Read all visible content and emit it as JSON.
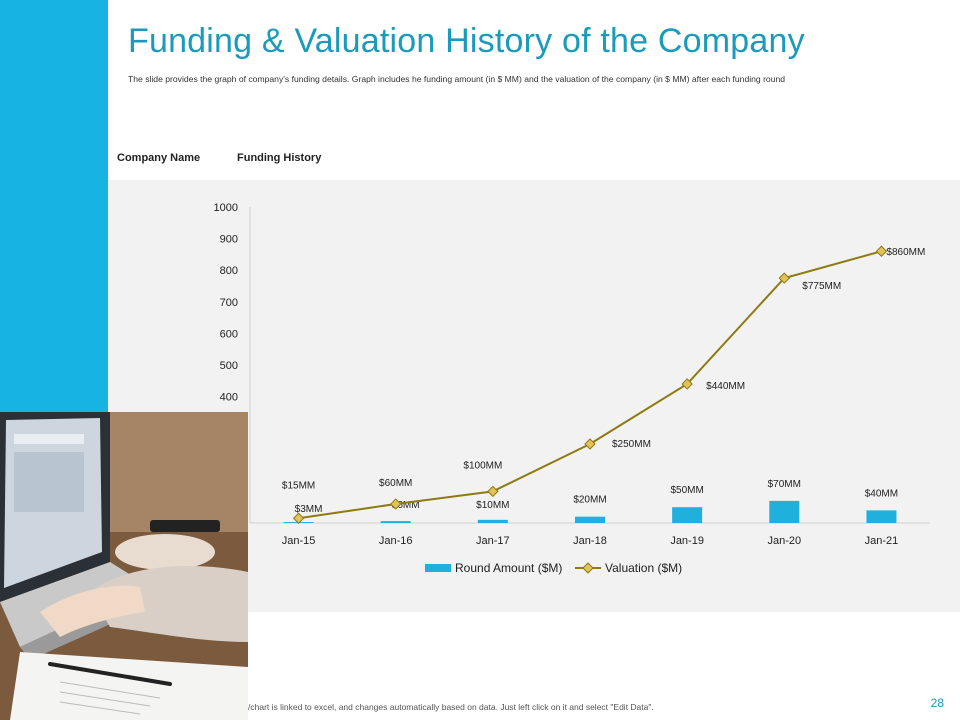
{
  "slide": {
    "title": "Funding & Valuation History of the Company",
    "subtitle": "The slide provides the graph of company's funding details. Graph includes he funding amount (in $ MM) and the valuation of the company (in $ MM) after each funding round",
    "labels": {
      "company_name": "Company Name",
      "funding_history": "Funding History"
    },
    "footer_note": "/chart is linked to excel, and changes automatically based on data. Just left click on it and select \"Edit Data\".",
    "page_number": "28"
  },
  "colors": {
    "accent": "#17b3e3",
    "title": "#1a9bbb",
    "bar": "#1fb1dc",
    "line": "#8e7a12",
    "marker": "#e2c35a"
  },
  "chart_data": {
    "type": "bar",
    "categories": [
      "Jan-15",
      "Jan-16",
      "Jan-17",
      "Jan-18",
      "Jan-19",
      "Jan-20",
      "Jan-21"
    ],
    "series": [
      {
        "name": "Round Amount ($M)",
        "type": "bar",
        "values": [
          3,
          6,
          10,
          20,
          50,
          70,
          40
        ],
        "data_labels": [
          "$3MM",
          "$6MM",
          "$10MM",
          "$20MM",
          "$50MM",
          "$70MM",
          "$40MM"
        ]
      },
      {
        "name": "Valuation ($M)",
        "type": "line",
        "values": [
          15,
          60,
          100,
          250,
          440,
          775,
          860
        ],
        "data_labels": [
          "$15MM",
          "$60MM",
          "$100MM",
          "$250MM",
          "$440MM",
          "$775MM",
          "$860MM"
        ]
      }
    ],
    "y_ticks": [
      "400",
      "500",
      "600",
      "700",
      "800",
      "900",
      "1000"
    ],
    "ylim": [
      0,
      1000
    ],
    "legend": "bottom",
    "grid": false
  }
}
